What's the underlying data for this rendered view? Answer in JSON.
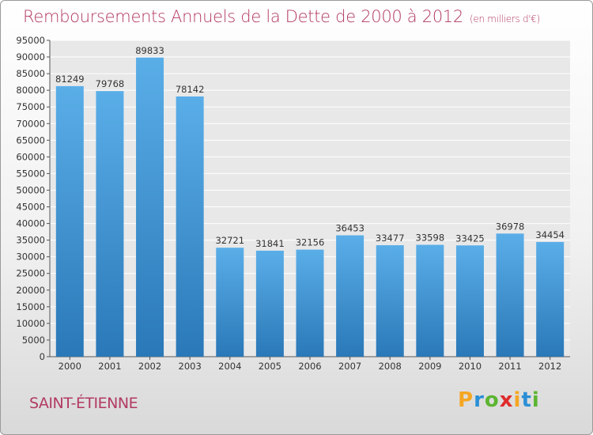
{
  "title": "Remboursements Annuels de la Dette de 2000 à 2012",
  "unit": "(en milliers d'€)",
  "city": "SAINT-ÉTIENNE",
  "logo": {
    "letters": [
      "P",
      "r",
      "o",
      "x",
      "i",
      "t",
      "i"
    ],
    "colors": [
      "#f5a623",
      "#2a8fd6",
      "#5cb531",
      "#e02b2b",
      "#f5a623",
      "#2a8fd6",
      "#5cb531"
    ]
  },
  "colors": {
    "bar_top": "#5aaee8",
    "bar_bottom": "#2a78b8",
    "accent": "#b23a62"
  },
  "chart_data": {
    "type": "bar",
    "categories": [
      "2000",
      "2001",
      "2002",
      "2003",
      "2004",
      "2005",
      "2006",
      "2007",
      "2008",
      "2009",
      "2010",
      "2011",
      "2012"
    ],
    "values": [
      81249,
      79768,
      89833,
      78142,
      32721,
      31841,
      32156,
      36453,
      33477,
      33598,
      33425,
      36978,
      34454
    ],
    "ylim": [
      0,
      95000
    ],
    "yticks": [
      "0",
      "5000",
      "10000",
      "15000",
      "20000",
      "25000",
      "30000",
      "35000",
      "40000",
      "45000",
      "50000",
      "55000",
      "60000",
      "65000",
      "70000",
      "75000",
      "80000",
      "85000",
      "90000",
      "95000"
    ],
    "grid": true
  }
}
